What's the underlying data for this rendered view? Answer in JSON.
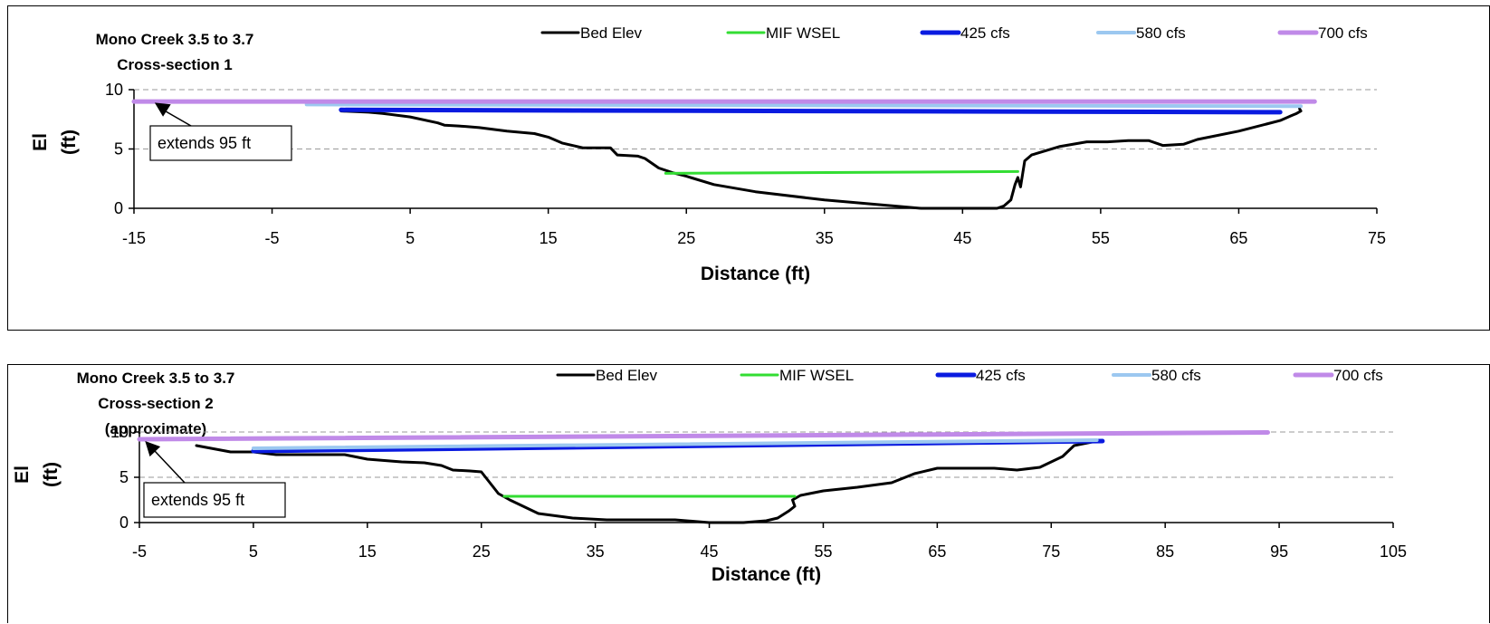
{
  "chart_data": [
    {
      "type": "line",
      "title": [
        "Mono Creek 3.5 to 3.7",
        "Cross-section 1"
      ],
      "xlabel": "Distance (ft)",
      "ylabel": [
        "El",
        "(ft)"
      ],
      "xlim": [
        -15,
        75
      ],
      "ylim": [
        0,
        10
      ],
      "xticks": [
        -15,
        -5,
        5,
        15,
        25,
        35,
        45,
        55,
        65,
        75
      ],
      "yticks": [
        0,
        5,
        10
      ],
      "grid": "horizontal dashed",
      "legend_position": "top",
      "annotation": {
        "text": "extends 95 ft",
        "points_to": [
          -13.5,
          8.9
        ]
      },
      "series": [
        {
          "name": "Bed Elev",
          "color": "#000000",
          "width": 3,
          "x": [
            0,
            2,
            3,
            5,
            7,
            7.5,
            9,
            10,
            12,
            14,
            15,
            16,
            17.5,
            18.5,
            19.5,
            20,
            21.5,
            22,
            22.5,
            23,
            24,
            25,
            27,
            30,
            35,
            40,
            42,
            47.5,
            48,
            48.5,
            48.8,
            49,
            49.2,
            49.5,
            50,
            52,
            54,
            55.5,
            57,
            58.5,
            59.5,
            61,
            62,
            65,
            67,
            68,
            68.8,
            69.2,
            69.5,
            69.4
          ],
          "y": [
            8.2,
            8.1,
            8.0,
            7.7,
            7.2,
            7.0,
            6.9,
            6.8,
            6.5,
            6.3,
            6.0,
            5.5,
            5.1,
            5.1,
            5.1,
            4.5,
            4.4,
            4.2,
            3.8,
            3.4,
            3.0,
            2.7,
            2.0,
            1.4,
            0.7,
            0.2,
            0.0,
            0.0,
            0.2,
            0.7,
            2.0,
            2.6,
            1.8,
            4.0,
            4.5,
            5.2,
            5.6,
            5.6,
            5.7,
            5.7,
            5.3,
            5.4,
            5.8,
            6.5,
            7.1,
            7.4,
            7.8,
            8.0,
            8.2,
            8.4
          ]
        },
        {
          "name": "MIF WSEL",
          "color": "#33dd33",
          "width": 3,
          "x": [
            23.5,
            49
          ],
          "y": [
            2.95,
            3.1
          ]
        },
        {
          "name": "425 cfs",
          "color": "#0a1be0",
          "width": 5,
          "x": [
            0,
            68
          ],
          "y": [
            8.3,
            8.1
          ]
        },
        {
          "name": "580  cfs",
          "color": "#9cc8f0",
          "width": 4,
          "x": [
            -2.5,
            69.5
          ],
          "y": [
            8.75,
            8.6
          ]
        },
        {
          "name": "700 cfs",
          "color": "#c08ae8",
          "width": 5,
          "x": [
            -15,
            70.5
          ],
          "y": [
            9.0,
            9.0
          ]
        }
      ]
    },
    {
      "type": "line",
      "title": [
        "Mono Creek 3.5 to 3.7",
        "Cross-section 2",
        "(approximate)"
      ],
      "xlabel": "Distance (ft)",
      "ylabel": [
        "El",
        "(ft)"
      ],
      "xlim": [
        -5,
        105
      ],
      "ylim": [
        0,
        10
      ],
      "xticks": [
        -5,
        5,
        15,
        25,
        35,
        45,
        55,
        65,
        75,
        85,
        95,
        105
      ],
      "yticks": [
        0,
        5,
        10
      ],
      "grid": "horizontal dashed",
      "legend_position": "top",
      "annotation": {
        "text": "extends 95 ft",
        "points_to": [
          -4.5,
          9.0
        ]
      },
      "series": [
        {
          "name": "Bed Elev",
          "color": "#000000",
          "width": 3,
          "x": [
            0,
            3,
            5,
            7,
            10,
            13,
            15,
            18,
            20,
            21.5,
            22.5,
            24,
            25,
            25.5,
            26.5,
            27.5,
            30,
            33,
            36,
            42,
            44,
            45,
            48,
            50,
            51,
            52,
            52.5,
            52.3,
            53,
            55,
            58,
            61,
            63,
            65,
            67,
            70,
            72,
            74,
            76,
            77,
            79
          ],
          "y": [
            8.5,
            7.8,
            7.8,
            7.5,
            7.5,
            7.5,
            7.0,
            6.7,
            6.6,
            6.3,
            5.8,
            5.7,
            5.6,
            4.8,
            3.2,
            2.5,
            1.0,
            0.5,
            0.3,
            0.3,
            0.1,
            0.0,
            0.0,
            0.2,
            0.5,
            1.3,
            1.8,
            2.5,
            3.0,
            3.5,
            3.9,
            4.4,
            5.4,
            6.0,
            6.0,
            6.0,
            5.8,
            6.1,
            7.3,
            8.5,
            9.0
          ]
        },
        {
          "name": "MIF WSEL",
          "color": "#33dd33",
          "width": 3,
          "x": [
            27,
            52.5
          ],
          "y": [
            2.9,
            2.9
          ]
        },
        {
          "name": "425 cfs",
          "color": "#0a1be0",
          "width": 5,
          "x": [
            5,
            79.5
          ],
          "y": [
            7.9,
            9.0
          ]
        },
        {
          "name": "580  cfs",
          "color": "#9cc8f0",
          "width": 4,
          "x": [
            5,
            79
          ],
          "y": [
            8.2,
            9.1
          ]
        },
        {
          "name": "700 cfs",
          "color": "#c08ae8",
          "width": 5,
          "x": [
            -5,
            94
          ],
          "y": [
            9.2,
            9.95
          ]
        }
      ]
    }
  ]
}
